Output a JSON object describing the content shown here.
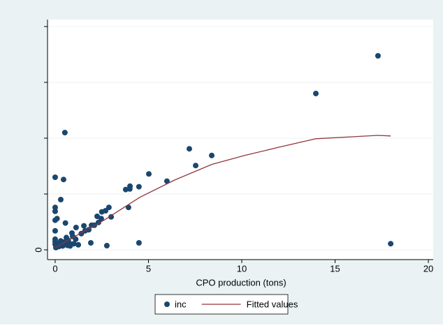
{
  "chart_data": {
    "type": "scatter",
    "xlabel": "CPO production (tons)",
    "xlim": [
      -0.41,
      20.26
    ],
    "xticks": [
      0,
      5,
      10,
      15,
      20
    ],
    "ylim": [
      -0.175,
      4.125
    ],
    "yticks": [
      0
    ],
    "ytick_marks": [
      1,
      2,
      3,
      4
    ],
    "grid": true,
    "legend": "bottom",
    "series": [
      {
        "name": "inc",
        "type": "scatter",
        "color": "#1a476f",
        "x": [
          17.3,
          13.97,
          17.98,
          7.19,
          8.39,
          7.53,
          5.02,
          5.99,
          4.01,
          4.49,
          3.78,
          4.0,
          0.52,
          0,
          0.45,
          0.3,
          0,
          0,
          0,
          0.1,
          0,
          0.55,
          4.49,
          2.77,
          3.93,
          2.88,
          2.7,
          2.5,
          2.25,
          3.0,
          2.32,
          1.95,
          1.54,
          1.12,
          0.9,
          1.24,
          0.79,
          1.91,
          0.04,
          0.1,
          0.2,
          0.3,
          0.4,
          0.6,
          0.7,
          0.94,
          1.1,
          1.4,
          1.6,
          1.8,
          2.1,
          2.47,
          0,
          0,
          0,
          0.2,
          0.5,
          0.8,
          0.65,
          1.0
        ],
        "values": [
          3.475,
          2.8,
          0.11,
          1.81,
          1.69,
          1.51,
          1.36,
          1.23,
          1.14,
          1.13,
          1.08,
          1.09,
          2.1,
          1.3,
          1.26,
          0.9,
          0.76,
          0.69,
          0.53,
          0.56,
          0.34,
          0.48,
          0.125,
          0.075,
          0.76,
          0.76,
          0.7,
          0.68,
          0.6,
          0.59,
          0.49,
          0.44,
          0.43,
          0.4,
          0.3,
          0.09,
          0.11,
          0.125,
          0.04,
          0.09,
          0.12,
          0.16,
          0.07,
          0.22,
          0.17,
          0.24,
          0.19,
          0.29,
          0.34,
          0.36,
          0.44,
          0.56,
          0.19,
          0.1,
          0.15,
          0.06,
          0.14,
          0.07,
          0.08,
          0.11
        ]
      },
      {
        "name": "Fitted values",
        "type": "line",
        "color": "#90353b",
        "x": [
          0,
          0.79,
          2.66,
          4.53,
          6.4,
          8.39,
          10.15,
          12.02,
          13.97,
          17.3,
          17.98
        ],
        "values": [
          0.04,
          0.19,
          0.54,
          0.94,
          1.25,
          1.53,
          1.69,
          1.84,
          1.99,
          2.05,
          2.04
        ]
      }
    ]
  }
}
